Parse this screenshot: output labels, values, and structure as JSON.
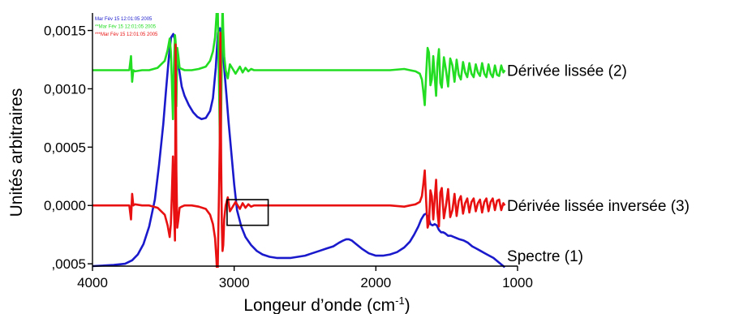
{
  "chart_data": {
    "type": "line",
    "title": "",
    "xlabel": "Longeur d’onde (cm",
    "xlabel_superscript": "-1",
    "xlabel_suffix": ")",
    "ylabel": "Unités arbitraires",
    "xlim": [
      4000,
      1000
    ],
    "x_reversed": true,
    "ylim": [
      -0.00052,
      0.00165
    ],
    "x_ticks": [
      4000,
      3000,
      2000,
      1000
    ],
    "x_tick_labels": [
      "4000",
      "3000",
      "2000",
      "1000"
    ],
    "y_ticks": [
      -0.0005,
      0.0,
      0.0005,
      0.001,
      0.0015
    ],
    "y_tick_labels": [
      ",0005",
      "0,0000",
      "0,0005",
      "0,0010",
      "0,0015"
    ],
    "grid": false,
    "legend_placement": "top-left",
    "legend_entries": [
      {
        "text": "Mar Fév 15 12:01:05 2005",
        "color": "#1a1acc"
      },
      {
        "text": "**Mar Fév 15 12:01:05 2005",
        "color": "#22dd22"
      },
      {
        "text": "***Mar Fév 15 12:01:05 2005",
        "color": "#e81010"
      }
    ],
    "annotations": [
      {
        "text": "Dérivée lissée (2)",
        "anchor_x": 1080,
        "anchor_y": 0.00116
      },
      {
        "text": "Dérivée lissée inversée (3)",
        "anchor_x": 1080,
        "anchor_y": 0.0
      },
      {
        "text": "Spectre (1)",
        "anchor_x": 1080,
        "anchor_y": -0.00043
      }
    ],
    "highlight_box": {
      "x": [
        3050,
        2760
      ],
      "y": [
        5e-05,
        -0.00017
      ]
    },
    "series": [
      {
        "name": "Spectre (1)",
        "color": "#1a1acc",
        "x": [
          4000,
          3850,
          3770,
          3720,
          3680,
          3640,
          3600,
          3560,
          3530,
          3500,
          3480,
          3460,
          3445,
          3430,
          3420,
          3405,
          3390,
          3370,
          3350,
          3320,
          3290,
          3260,
          3230,
          3200,
          3170,
          3150,
          3130,
          3115,
          3100,
          3090,
          3080,
          3070,
          3055,
          3040,
          3020,
          3000,
          2980,
          2950,
          2920,
          2880,
          2840,
          2800,
          2750,
          2700,
          2650,
          2600,
          2550,
          2500,
          2450,
          2400,
          2350,
          2300,
          2260,
          2230,
          2210,
          2190,
          2170,
          2140,
          2100,
          2050,
          2000,
          1950,
          1900,
          1850,
          1800,
          1760,
          1730,
          1700,
          1680,
          1660,
          1645,
          1630,
          1615,
          1600,
          1585,
          1570,
          1555,
          1540,
          1525,
          1510,
          1490,
          1470,
          1450,
          1430,
          1410,
          1380,
          1350,
          1320,
          1290,
          1260,
          1230,
          1200,
          1170,
          1140,
          1110,
          1090
        ],
        "y": [
          -0.00052,
          -0.00051,
          -0.0005,
          -0.00047,
          -0.00042,
          -0.00033,
          -0.00018,
          5e-05,
          0.00035,
          0.0007,
          0.001,
          0.00128,
          0.00144,
          0.00147,
          0.00143,
          0.0013,
          0.00118,
          0.00102,
          0.00094,
          0.00086,
          0.0008,
          0.00076,
          0.00074,
          0.00075,
          0.00081,
          0.00092,
          0.00118,
          0.00148,
          0.00152,
          0.00148,
          0.00135,
          0.00118,
          0.00095,
          0.00072,
          0.00045,
          0.00018,
          -4e-05,
          -0.00018,
          -0.00027,
          -0.00034,
          -0.00039,
          -0.00042,
          -0.00044,
          -0.00045,
          -0.00045,
          -0.00045,
          -0.00044,
          -0.00043,
          -0.00041,
          -0.00039,
          -0.00037,
          -0.00035,
          -0.00032,
          -0.0003,
          -0.00029,
          -0.00029,
          -0.0003,
          -0.00033,
          -0.00037,
          -0.00041,
          -0.00043,
          -0.00043,
          -0.00042,
          -0.0004,
          -0.00036,
          -0.00031,
          -0.00025,
          -0.00018,
          -0.00012,
          -8e-05,
          -7e-05,
          -0.0001,
          -0.00016,
          -0.00017,
          -0.00016,
          -0.00017,
          -0.00021,
          -0.00023,
          -0.00023,
          -0.00024,
          -0.00026,
          -0.00026,
          -0.00027,
          -0.00028,
          -0.00029,
          -0.0003,
          -0.00032,
          -0.00035,
          -0.00037,
          -0.00039,
          -0.00041,
          -0.00043,
          -0.00045,
          -0.00048,
          -0.00051,
          -0.00053
        ]
      },
      {
        "name": "Dérivée lissée (2)",
        "color": "#22dd22",
        "x": [
          4000,
          3800,
          3740,
          3728,
          3720,
          3712,
          3700,
          3650,
          3600,
          3540,
          3490,
          3470,
          3455,
          3447,
          3440,
          3432,
          3425,
          3418,
          3413,
          3408,
          3402,
          3395,
          3385,
          3370,
          3350,
          3300,
          3250,
          3200,
          3170,
          3150,
          3135,
          3125,
          3118,
          3112,
          3107,
          3102,
          3097,
          3092,
          3087,
          3082,
          3077,
          3070,
          3060,
          3045,
          3030,
          3010,
          2990,
          2960,
          2940,
          2920,
          2900,
          2880,
          2860,
          2840,
          2800,
          2700,
          2500,
          2300,
          2100,
          1900,
          1800,
          1760,
          1720,
          1690,
          1675,
          1665,
          1655,
          1645,
          1635,
          1625,
          1615,
          1605,
          1595,
          1585,
          1575,
          1565,
          1555,
          1545,
          1535,
          1520,
          1505,
          1490,
          1475,
          1460,
          1445,
          1430,
          1415,
          1400,
          1385,
          1370,
          1355,
          1340,
          1325,
          1310,
          1295,
          1280,
          1265,
          1250,
          1235,
          1220,
          1205,
          1190,
          1175,
          1160,
          1145,
          1130,
          1115,
          1100,
          1090
        ],
        "y": [
          0.00116,
          0.00116,
          0.00116,
          0.00128,
          0.00106,
          0.00116,
          0.00115,
          0.00116,
          0.00116,
          0.00118,
          0.00124,
          0.00133,
          0.00143,
          0.00132,
          0.00108,
          0.00074,
          0.00118,
          0.00146,
          0.0014,
          0.00085,
          0.00135,
          0.00129,
          0.00118,
          0.00117,
          0.00116,
          0.00116,
          0.00117,
          0.00119,
          0.00124,
          0.00132,
          0.00144,
          0.00162,
          0.00182,
          0.0014,
          0.00104,
          0.00062,
          0.0004,
          0.00078,
          0.00134,
          0.00175,
          0.0015,
          0.00128,
          0.00116,
          0.00109,
          0.00121,
          0.00117,
          0.00113,
          0.00119,
          0.00114,
          0.00118,
          0.00115,
          0.00117,
          0.00116,
          0.00116,
          0.00116,
          0.00116,
          0.00116,
          0.00116,
          0.00116,
          0.00116,
          0.00117,
          0.00116,
          0.00115,
          0.00113,
          0.00108,
          0.00098,
          0.00086,
          0.00112,
          0.00135,
          0.00131,
          0.00103,
          0.00108,
          0.00128,
          0.00111,
          0.00094,
          0.00122,
          0.00134,
          0.00105,
          0.00101,
          0.00127,
          0.00116,
          0.00102,
          0.00126,
          0.0012,
          0.00106,
          0.00125,
          0.00112,
          0.00108,
          0.00123,
          0.00114,
          0.0011,
          0.00122,
          0.00113,
          0.0011,
          0.00121,
          0.00114,
          0.00111,
          0.00122,
          0.00113,
          0.0011,
          0.00121,
          0.00113,
          0.0011,
          0.0012,
          0.00112,
          0.00111,
          0.0012,
          0.00114,
          0.00116
        ]
      },
      {
        "name": "Dérivée lissée inversée (3)",
        "color": "#e81010",
        "x": [
          4000,
          3800,
          3740,
          3728,
          3720,
          3712,
          3700,
          3650,
          3600,
          3540,
          3490,
          3470,
          3455,
          3447,
          3440,
          3432,
          3425,
          3418,
          3413,
          3408,
          3402,
          3395,
          3385,
          3370,
          3350,
          3300,
          3250,
          3200,
          3170,
          3150,
          3135,
          3125,
          3118,
          3112,
          3107,
          3102,
          3097,
          3092,
          3087,
          3082,
          3077,
          3070,
          3060,
          3045,
          3030,
          3010,
          2990,
          2960,
          2940,
          2920,
          2900,
          2880,
          2860,
          2840,
          2800,
          2700,
          2500,
          2300,
          2100,
          1900,
          1800,
          1760,
          1720,
          1690,
          1675,
          1665,
          1655,
          1645,
          1635,
          1625,
          1615,
          1605,
          1595,
          1585,
          1575,
          1565,
          1555,
          1545,
          1535,
          1520,
          1505,
          1490,
          1475,
          1460,
          1445,
          1430,
          1415,
          1400,
          1385,
          1370,
          1355,
          1340,
          1325,
          1310,
          1295,
          1280,
          1265,
          1250,
          1235,
          1220,
          1205,
          1190,
          1175,
          1160,
          1145,
          1130,
          1115,
          1100,
          1090
        ],
        "y": [
          0.0,
          0.0,
          0.0,
          -0.00012,
          0.0001,
          0.0,
          1e-05,
          0.0,
          0.0,
          -2e-05,
          -8e-05,
          -0.00017,
          -0.00027,
          -0.00016,
          8e-05,
          0.00042,
          -2e-05,
          -0.0003,
          0.00138,
          0.00031,
          -0.00019,
          -0.00013,
          -2e-05,
          -1e-05,
          0.0,
          0.0,
          -1e-05,
          -3e-05,
          -8e-05,
          -0.00016,
          -0.00028,
          -0.00046,
          -0.00066,
          -0.00024,
          0.00012,
          0.00054,
          0.00148,
          0.00038,
          -0.00018,
          -0.00039,
          -0.00034,
          -0.00012,
          0.0,
          7e-05,
          -5e-05,
          -1e-05,
          3e-05,
          -3e-05,
          2e-05,
          -2e-05,
          1e-05,
          -1e-05,
          0.0,
          0.0,
          0.0,
          0.0,
          0.0,
          0.0,
          0.0,
          0.0,
          -1e-05,
          0.0,
          1e-05,
          3e-05,
          8e-05,
          0.00018,
          0.0003,
          4e-05,
          -0.00019,
          -0.00015,
          0.00013,
          8e-05,
          -0.00012,
          5e-05,
          0.00022,
          -6e-05,
          -0.00018,
          0.00011,
          0.00015,
          -0.00011,
          0.0,
          0.00014,
          -0.0001,
          -4e-05,
          0.0001,
          -9e-05,
          4e-05,
          8e-05,
          -7e-05,
          2e-05,
          6e-05,
          -6e-05,
          3e-05,
          6e-05,
          -5e-05,
          2e-05,
          5e-05,
          -6e-05,
          3e-05,
          6e-05,
          -5e-05,
          3e-05,
          6e-05,
          -4e-05,
          4e-05,
          5e-05,
          -4e-05,
          2e-05,
          0.0
        ]
      }
    ]
  }
}
